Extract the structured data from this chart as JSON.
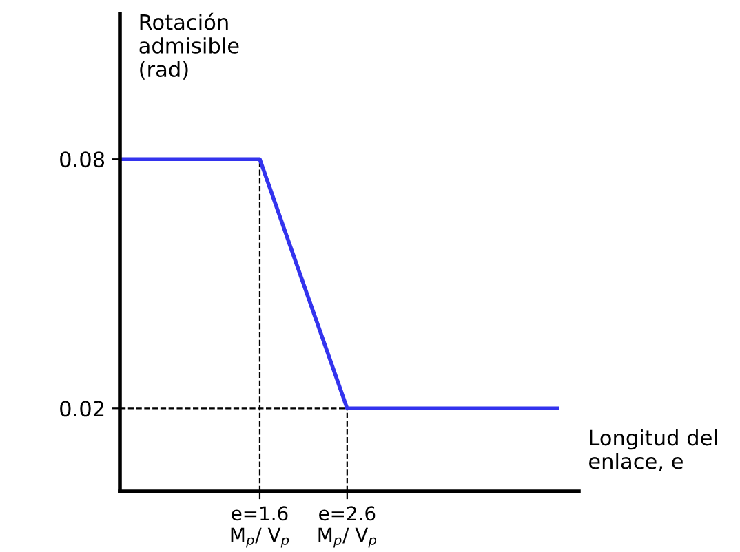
{
  "chart_data": {
    "type": "line",
    "xlabel": "Longitud del\nenlace, e",
    "ylabel": "Rotación\nadmisible\n(rad)",
    "x": [
      0,
      1.6,
      2.6,
      5.0
    ],
    "series": [
      {
        "color": "#3333ee",
        "values": [
          0.08,
          0.08,
          0.02,
          0.02
        ]
      }
    ],
    "xlim": [
      0,
      5.25
    ],
    "ylim": [
      0,
      0.115
    ],
    "xticks": [
      {
        "value": 1.6,
        "label": "e=1.6 M$_{p}$/ V$_{p}$"
      },
      {
        "value": 2.6,
        "label": "e=2.6 M$_{p}$/ V$_{p}$"
      }
    ],
    "yticks": [
      0.02,
      0.08
    ],
    "ref_lines": [
      {
        "axis": "x",
        "value": 1.6,
        "line_style": "dashed",
        "color": "#000000"
      },
      {
        "axis": "x",
        "value": 2.6,
        "line_style": "dashed",
        "color": "#000000"
      },
      {
        "axis": "y",
        "value": 0.02,
        "line_style": "dashed",
        "color": "#000000"
      }
    ],
    "grid": false,
    "legend": false,
    "marker": "none",
    "line_style": "solid"
  }
}
